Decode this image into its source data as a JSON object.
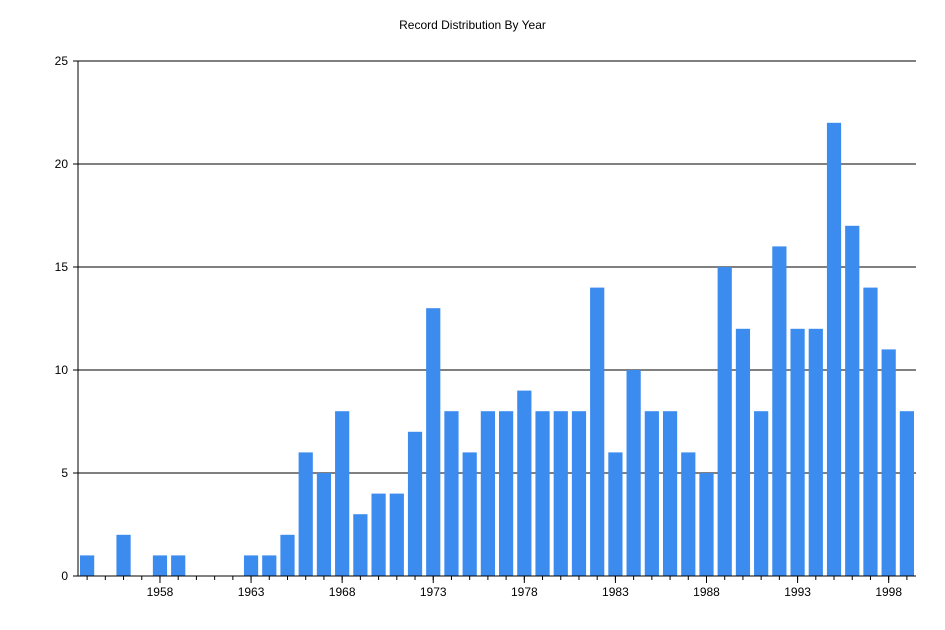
{
  "chart_data": {
    "type": "bar",
    "title": "Record Distribution By Year",
    "xlabel": "",
    "ylabel": "",
    "ylim": [
      0,
      25
    ],
    "yticks": [
      0,
      5,
      10,
      15,
      20,
      25
    ],
    "xtick_labels": [
      "1958",
      "1963",
      "1968",
      "1973",
      "1978",
      "1983",
      "1988",
      "1993",
      "1998"
    ],
    "grid": "horizontal",
    "bar_color": "#3c8cf0",
    "categories": [
      1954,
      1955,
      1956,
      1957,
      1958,
      1959,
      1960,
      1961,
      1962,
      1963,
      1964,
      1965,
      1966,
      1967,
      1968,
      1969,
      1970,
      1971,
      1972,
      1973,
      1974,
      1975,
      1976,
      1977,
      1978,
      1979,
      1980,
      1981,
      1982,
      1983,
      1984,
      1985,
      1986,
      1987,
      1988,
      1989,
      1990,
      1991,
      1992,
      1993,
      1994,
      1995,
      1996,
      1997,
      1998,
      1999
    ],
    "values": [
      1,
      0,
      2,
      0,
      1,
      1,
      0,
      0,
      0,
      1,
      1,
      2,
      6,
      5,
      8,
      3,
      4,
      4,
      7,
      13,
      8,
      6,
      8,
      8,
      9,
      8,
      8,
      8,
      14,
      6,
      10,
      8,
      8,
      6,
      5,
      15,
      12,
      8,
      16,
      12,
      12,
      22,
      17,
      14,
      11,
      8
    ]
  }
}
